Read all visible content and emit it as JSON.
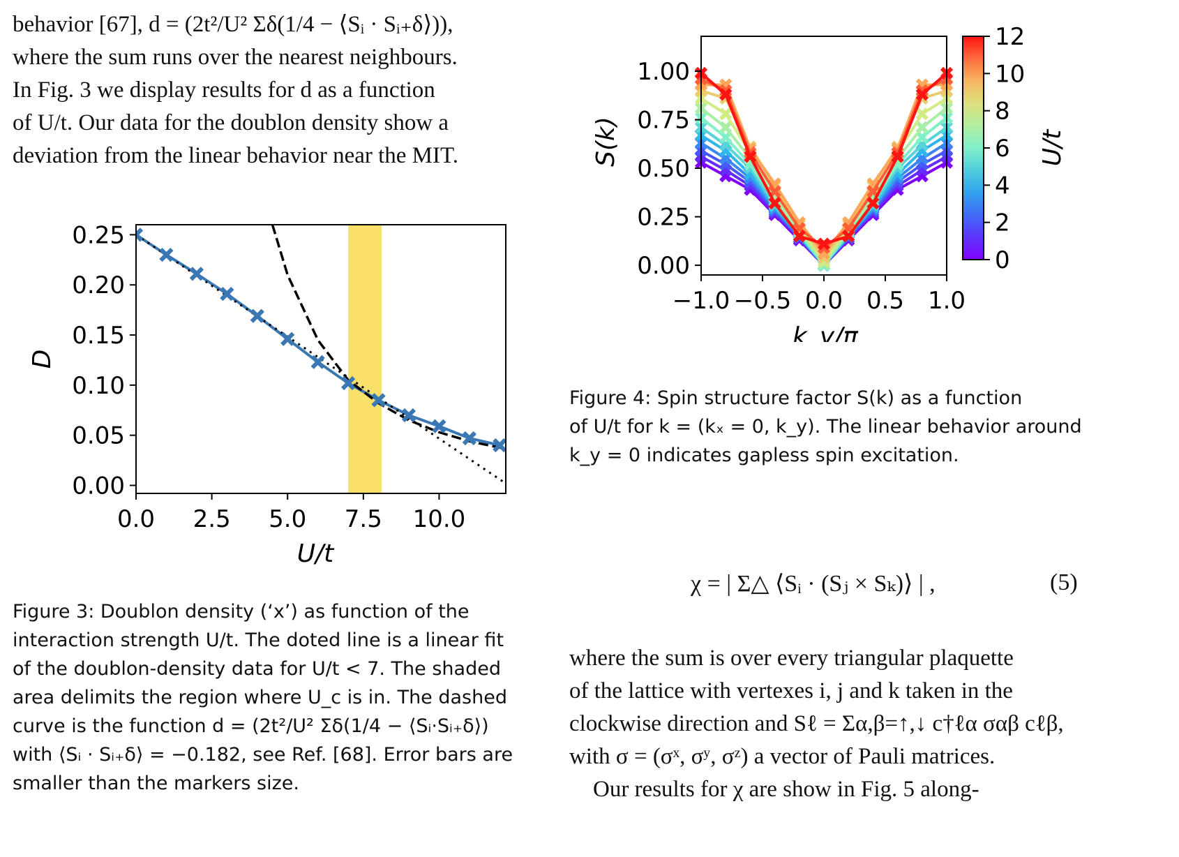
{
  "left_column": {
    "intro_lines": [
      "behavior [67], d = (2t²/U² Σδ(1/4 − ⟨Sᵢ · Sᵢ₊δ⟩)),",
      "where the sum runs over the nearest neighbours.",
      "In Fig. 3 we display results for d as a function",
      "of U/t. Our data for the doublon density show a",
      "deviation from the linear behavior near the MIT."
    ],
    "figure3_caption_lines": [
      "Figure 3:  Doublon density (‘x’) as function of the",
      "interaction strength U/t.  The doted line is a linear fit",
      "of the doublon-density data for U/t < 7.  The shaded",
      "area delimits the region where U_c is in.  The dashed",
      "curve is the function d = (2t²/U² Σδ(1/4 − ⟨Sᵢ·Sᵢ₊δ⟩)",
      "with ⟨Sᵢ · Sᵢ₊δ⟩ = −0.182, see Ref. [68].  Error bars are",
      "smaller than the markers size."
    ]
  },
  "right_column": {
    "figure4_caption_lines": [
      "Figure 4:  Spin structure factor S(k) as a function",
      "of U/t for k = (kₓ = 0, k_y).  The linear behavior around",
      "k_y = 0 indicates gapless spin excitation."
    ],
    "equation": "χ = | Σ△ ⟨Sᵢ · (Sⱼ × Sₖ)⟩ | ,",
    "equation_number": "(5)",
    "body_lines": [
      "where the sum is over every triangular plaquette",
      "of the lattice with vertexes i, j and k taken in the",
      "clockwise direction and Sℓ = Σα,β=↑,↓ c†ℓα σαβ cℓβ,",
      "with σ = (σˣ, σʸ, σᶻ) a vector of Pauli matrices.",
      "Our results for χ are show in Fig. 5 along-"
    ]
  },
  "chart_data": [
    {
      "type": "line",
      "xlabel": "U/t",
      "ylabel": "D",
      "xlim": [
        0,
        12.2
      ],
      "ylim": [
        -0.008,
        0.26
      ],
      "xticks": [
        "0.0",
        "2.5",
        "5.0",
        "7.5",
        "10.0"
      ],
      "xtick_values": [
        0,
        2.5,
        5,
        7.5,
        10
      ],
      "yticks": [
        "0.00",
        "0.05",
        "0.10",
        "0.15",
        "0.20",
        "0.25"
      ],
      "ytick_values": [
        0,
        0.05,
        0.1,
        0.15,
        0.2,
        0.25
      ],
      "shaded_region": [
        7,
        8.1
      ],
      "shaded_color": "#f9e06a",
      "series": [
        {
          "style": "solid-x-markers",
          "color": "#3a78b3",
          "x": [
            0,
            1,
            2,
            3,
            4,
            5,
            6,
            7,
            8,
            9,
            10,
            11,
            12
          ],
          "y": [
            0.25,
            0.23,
            0.211,
            0.191,
            0.169,
            0.146,
            0.123,
            0.102,
            0.085,
            0.07,
            0.059,
            0.047,
            0.04
          ]
        },
        {
          "style": "dotted",
          "color": "#000000",
          "x": [
            0,
            12.1
          ],
          "y": [
            0.25,
            0.004
          ]
        },
        {
          "style": "dashed",
          "color": "#000000",
          "x": [
            4.5,
            5,
            6,
            7,
            8,
            9,
            10,
            11,
            12.1
          ],
          "y": [
            0.26,
            0.21,
            0.145,
            0.105,
            0.082,
            0.065,
            0.053,
            0.044,
            0.037
          ]
        }
      ],
      "grid": false
    },
    {
      "type": "line",
      "xlabel": "k_y/π",
      "ylabel": "S(k)",
      "xlim": [
        -1.0,
        1.0
      ],
      "ylim": [
        -0.05,
        1.18
      ],
      "xticks": [
        "−1.0",
        "−0.5",
        "0.0",
        "0.5",
        "1.0"
      ],
      "xtick_values": [
        -1,
        -0.5,
        0,
        0.5,
        1
      ],
      "yticks": [
        "0.00",
        "0.25",
        "0.50",
        "0.75",
        "1.00"
      ],
      "ytick_values": [
        0,
        0.25,
        0.5,
        0.75,
        1.0
      ],
      "x": [
        -1.0,
        -0.8,
        -0.6,
        -0.4,
        -0.2,
        0.0,
        0.2,
        0.4,
        0.6,
        0.8,
        1.0
      ],
      "series": [
        {
          "U_over_t": 0,
          "y": [
            0.53,
            0.46,
            0.39,
            0.26,
            0.13,
            0.0,
            0.13,
            0.26,
            0.39,
            0.46,
            0.53
          ]
        },
        {
          "U_over_t": 1,
          "y": [
            0.56,
            0.49,
            0.41,
            0.27,
            0.14,
            0.0,
            0.14,
            0.27,
            0.41,
            0.49,
            0.56
          ]
        },
        {
          "U_over_t": 2,
          "y": [
            0.59,
            0.52,
            0.43,
            0.28,
            0.14,
            0.0,
            0.14,
            0.28,
            0.43,
            0.52,
            0.59
          ]
        },
        {
          "U_over_t": 3,
          "y": [
            0.63,
            0.55,
            0.45,
            0.29,
            0.15,
            0.0,
            0.15,
            0.29,
            0.45,
            0.55,
            0.63
          ]
        },
        {
          "U_over_t": 4,
          "y": [
            0.67,
            0.59,
            0.47,
            0.3,
            0.15,
            0.0,
            0.15,
            0.3,
            0.47,
            0.59,
            0.67
          ]
        },
        {
          "U_over_t": 5,
          "y": [
            0.71,
            0.62,
            0.5,
            0.31,
            0.16,
            0.0,
            0.16,
            0.31,
            0.5,
            0.62,
            0.71
          ]
        },
        {
          "U_over_t": 6,
          "y": [
            0.76,
            0.66,
            0.52,
            0.33,
            0.17,
            0.0,
            0.17,
            0.33,
            0.52,
            0.66,
            0.76
          ]
        },
        {
          "U_over_t": 7,
          "y": [
            0.81,
            0.71,
            0.55,
            0.35,
            0.18,
            0.01,
            0.18,
            0.35,
            0.55,
            0.71,
            0.81
          ]
        },
        {
          "U_over_t": 8,
          "y": [
            0.86,
            0.78,
            0.58,
            0.38,
            0.19,
            0.02,
            0.19,
            0.38,
            0.58,
            0.78,
            0.86
          ]
        },
        {
          "U_over_t": 9,
          "y": [
            0.9,
            0.86,
            0.61,
            0.41,
            0.21,
            0.04,
            0.21,
            0.41,
            0.61,
            0.86,
            0.9
          ]
        },
        {
          "U_over_t": 10,
          "y": [
            0.93,
            0.93,
            0.6,
            0.42,
            0.22,
            0.06,
            0.22,
            0.42,
            0.6,
            0.93,
            0.93
          ]
        },
        {
          "U_over_t": 11,
          "y": [
            0.96,
            0.9,
            0.58,
            0.38,
            0.19,
            0.09,
            0.19,
            0.38,
            0.58,
            0.9,
            0.96
          ]
        },
        {
          "U_over_t": 12,
          "y": [
            0.99,
            0.88,
            0.56,
            0.32,
            0.15,
            0.11,
            0.15,
            0.32,
            0.56,
            0.88,
            0.99
          ]
        }
      ],
      "colorbar": {
        "label": "U/t",
        "range": [
          0,
          12
        ],
        "ticks": [
          "0",
          "2",
          "4",
          "6",
          "8",
          "10",
          "12"
        ],
        "tick_values": [
          0,
          2,
          4,
          6,
          8,
          10,
          12
        ],
        "colormap": "rainbow"
      },
      "grid": false
    }
  ]
}
